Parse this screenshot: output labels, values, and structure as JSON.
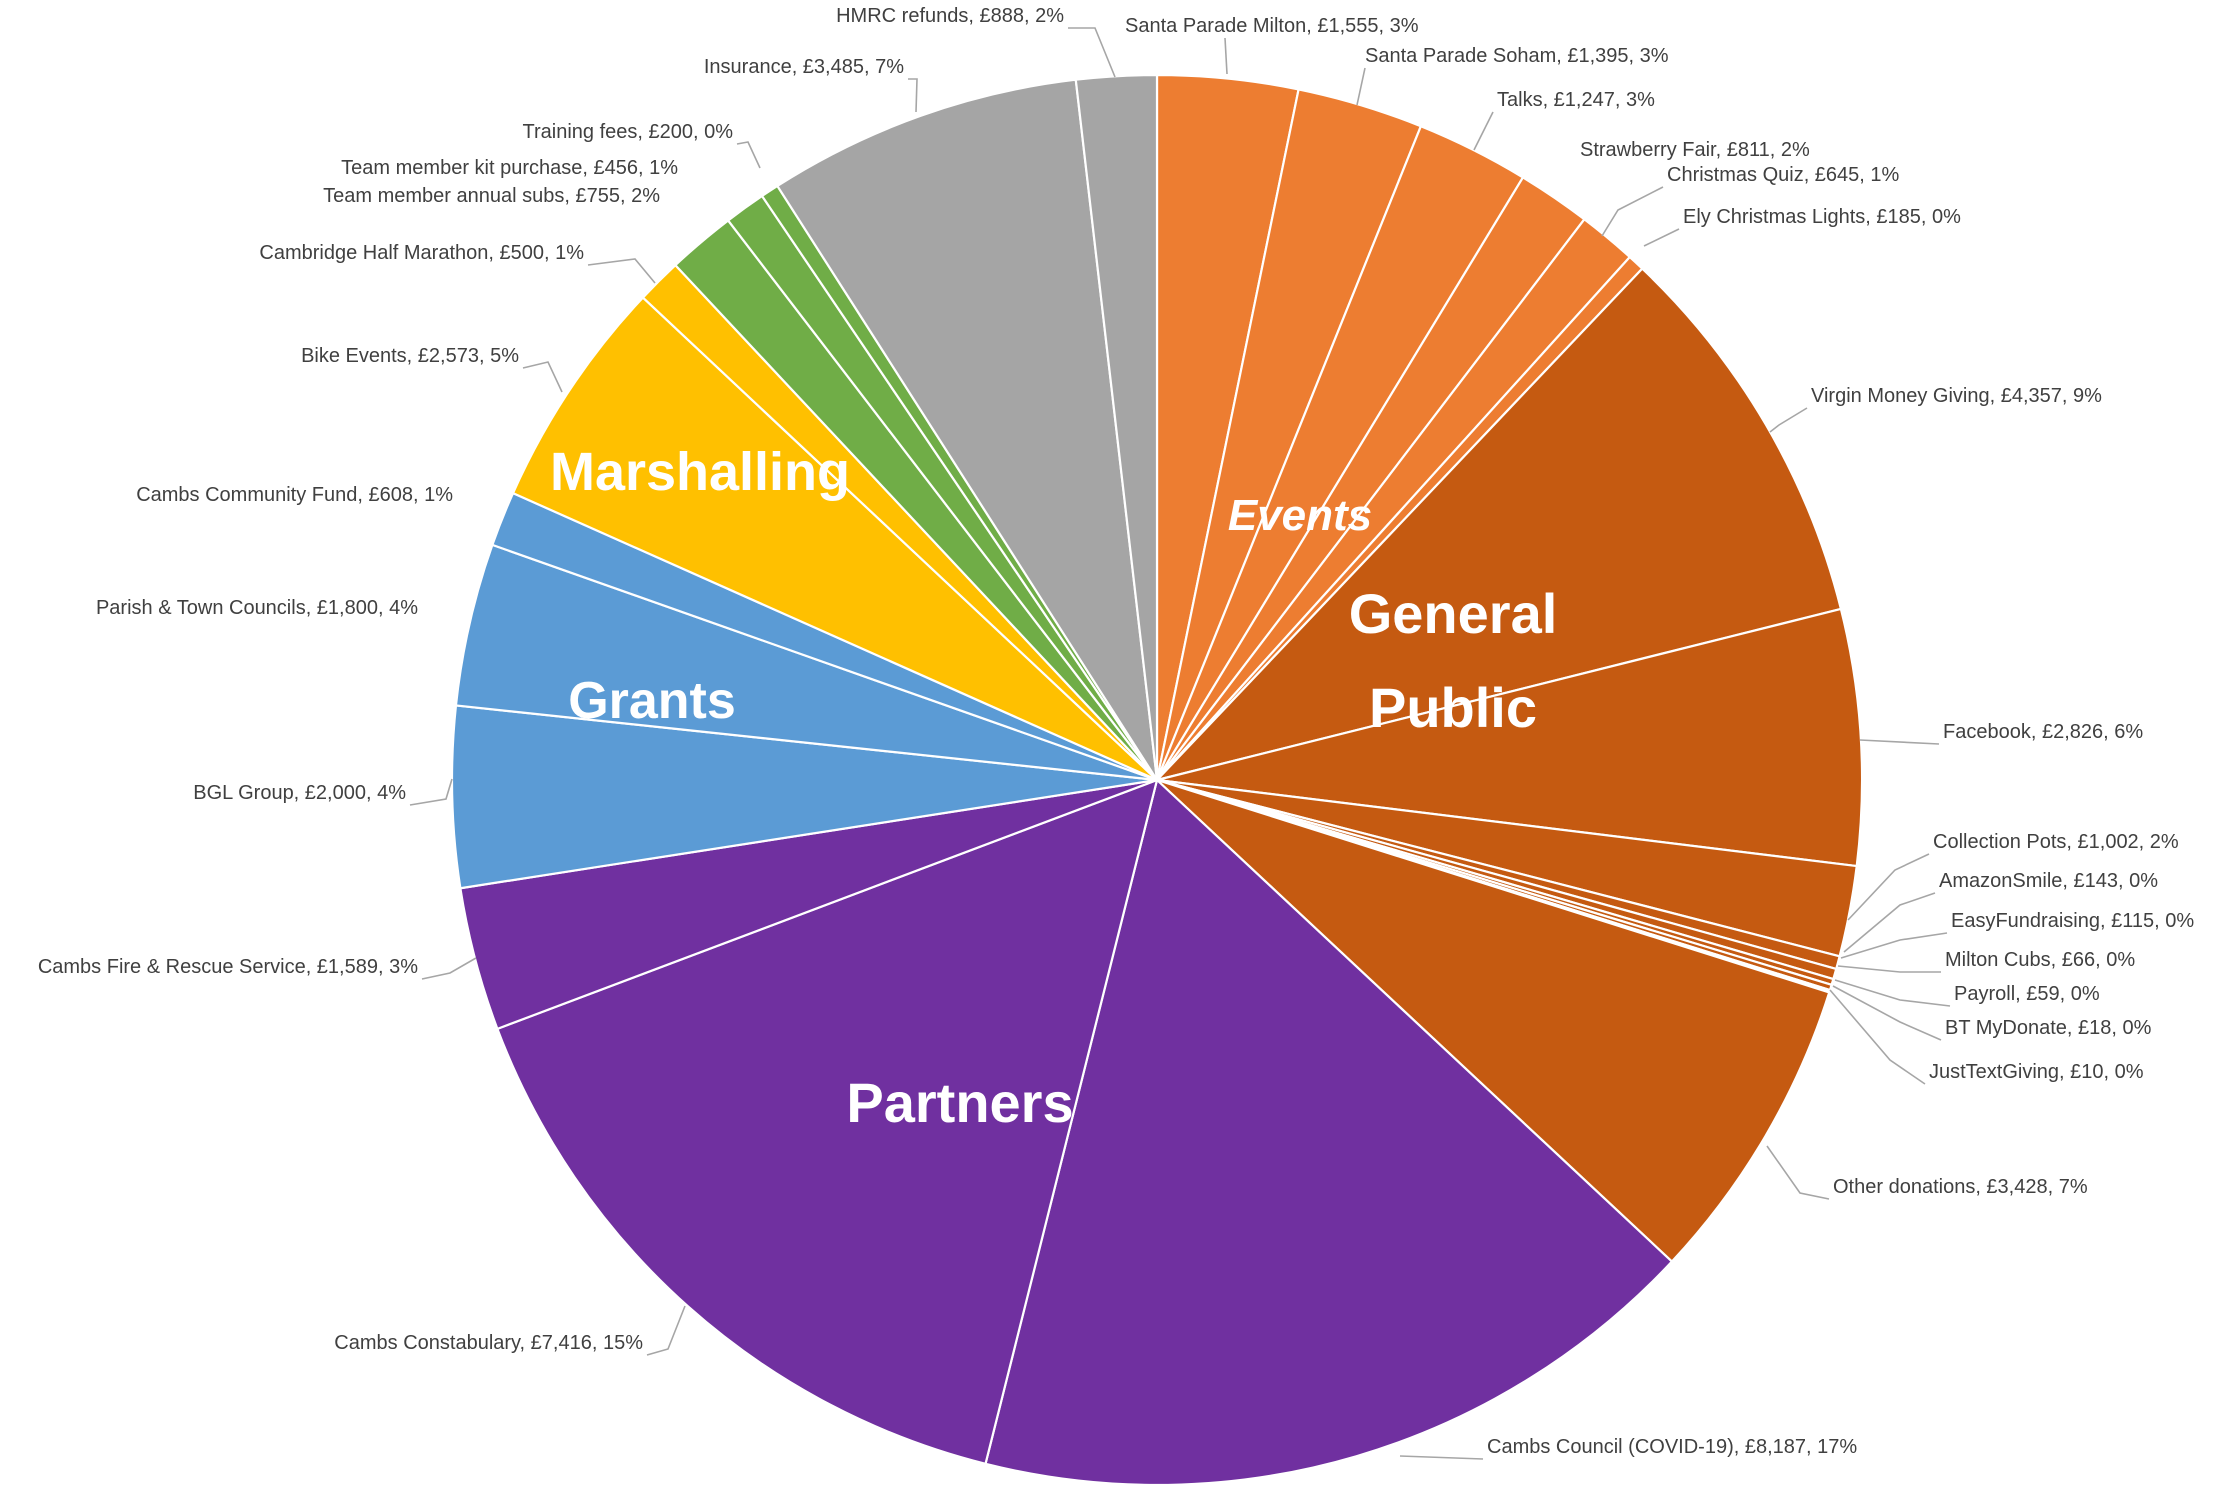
{
  "chart_data": {
    "type": "pie",
    "title": "",
    "groups": [
      {
        "name": "Events",
        "italic": true
      },
      {
        "name": "General Public",
        "lines": [
          "General",
          "Public"
        ]
      },
      {
        "name": "Partners"
      },
      {
        "name": "Grants"
      },
      {
        "name": "Marshalling"
      }
    ],
    "slices": [
      {
        "label": "Santa Parade Milton, £1,555, 3%",
        "value": 1555,
        "color": "#ed7d31"
      },
      {
        "label": "Santa Parade Soham, £1,395, 3%",
        "value": 1395,
        "color": "#ed7d31"
      },
      {
        "label": "Talks, £1,247, 3%",
        "value": 1247,
        "color": "#ed7d31"
      },
      {
        "label": "Strawberry Fair, £811, 2%",
        "value": 811,
        "color": "#ed7d31"
      },
      {
        "label": "Christmas Quiz, £645, 1%",
        "value": 645,
        "color": "#ed7d31"
      },
      {
        "label": "Ely Christmas Lights, £185, 0%",
        "value": 185,
        "color": "#ed7d31"
      },
      {
        "label": "Virgin Money Giving, £4,357, 9%",
        "value": 4357,
        "color": "#c55a11"
      },
      {
        "label": "Facebook, £2,826, 6%",
        "value": 2826,
        "color": "#c55a11"
      },
      {
        "label": "Collection Pots, £1,002, 2%",
        "value": 1002,
        "color": "#c55a11"
      },
      {
        "label": "AmazonSmile, £143, 0%",
        "value": 143,
        "color": "#c55a11"
      },
      {
        "label": "EasyFundraising, £115, 0%",
        "value": 115,
        "color": "#c55a11"
      },
      {
        "label": "Milton Cubs, £66, 0%",
        "value": 66,
        "color": "#c55a11"
      },
      {
        "label": "Payroll, £59, 0%",
        "value": 59,
        "color": "#c55a11"
      },
      {
        "label": "BT MyDonate, £18, 0%",
        "value": 18,
        "color": "#c55a11"
      },
      {
        "label": "JustTextGiving, £10, 0%",
        "value": 10,
        "color": "#c55a11"
      },
      {
        "label": "Other donations, £3,428, 7%",
        "value": 3428,
        "color": "#c55a11"
      },
      {
        "label": "Cambs Council (COVID-19), £8,187, 17%",
        "value": 8187,
        "color": "#7030a0"
      },
      {
        "label": "Cambs Constabulary, £7,416, 15%",
        "value": 7416,
        "color": "#7030a0"
      },
      {
        "label": "Cambs Fire & Rescue Service, £1,589, 3%",
        "value": 1589,
        "color": "#7030a0"
      },
      {
        "label": "BGL Group, £2,000, 4%",
        "value": 2000,
        "color": "#5b9bd5"
      },
      {
        "label": "Parish & Town Councils, £1,800, 4%",
        "value": 1800,
        "color": "#5b9bd5"
      },
      {
        "label": "Cambs Community Fund, £608, 1%",
        "value": 608,
        "color": "#5b9bd5"
      },
      {
        "label": "Bike Events, £2,573, 5%",
        "value": 2573,
        "color": "#ffc000"
      },
      {
        "label": "Cambridge Half Marathon, £500, 1%",
        "value": 500,
        "color": "#ffc000"
      },
      {
        "label": "Team member annual subs, £755, 2%",
        "value": 755,
        "color": "#70ad47"
      },
      {
        "label": "Team member kit purchase, £456, 1%",
        "value": 456,
        "color": "#70ad47"
      },
      {
        "label": "Training fees, £200, 0%",
        "value": 200,
        "color": "#70ad47"
      },
      {
        "label": "Insurance, £3,485, 7%",
        "value": 3485,
        "color": "#a5a5a5"
      },
      {
        "label": "HMRC refunds, £888, 2%",
        "value": 888,
        "color": "#a5a5a5"
      }
    ]
  }
}
